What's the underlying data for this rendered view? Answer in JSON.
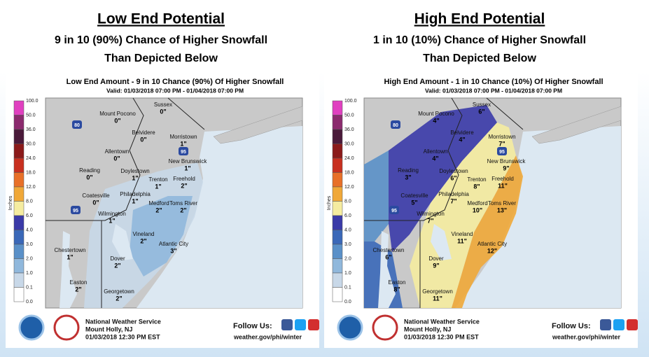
{
  "legend": {
    "unit": "Inches",
    "labels": [
      "100.0",
      "50.0",
      "36.0",
      "30.0",
      "24.0",
      "18.0",
      "12.0",
      "8.0",
      "6.0",
      "4.0",
      "3.0",
      "2.0",
      "1.0",
      "0.1",
      "0.0"
    ],
    "colors": [
      "#e040c0",
      "#8b2a6e",
      "#4a1a3a",
      "#8b1a1a",
      "#c83020",
      "#e87028",
      "#f0a838",
      "#f5eca0",
      "#3a3aa8",
      "#3a68b8",
      "#5a90c8",
      "#90b8dc",
      "#c8d8e8",
      "#ffffff"
    ]
  },
  "footer": {
    "office": "National Weather Service",
    "location": "Mount Holly, NJ",
    "issued": "01/03/2018 12:30 PM EST",
    "follow": "Follow Us:",
    "url": "weather.gov/phi/winter"
  },
  "panels": [
    {
      "heading": "Low End Potential",
      "subheading": [
        "9 in 10 (90%)  Chance of Higher Snowfall",
        "Than Depicted Below"
      ],
      "map_title": "Low End Amount - 9 in 10 Chance (90%) Of Higher Snowfall",
      "valid": "Valid: 01/03/2018 07:00 PM - 01/04/2018 07:00 PM",
      "highways": [
        "80",
        "95",
        "95"
      ],
      "cities": [
        {
          "name": "Sussex",
          "amount": "0\""
        },
        {
          "name": "Mount Pocono",
          "amount": "0\""
        },
        {
          "name": "Morristown",
          "amount": "1\""
        },
        {
          "name": "Belvidere",
          "amount": "0\""
        },
        {
          "name": "Allentown",
          "amount": "0\""
        },
        {
          "name": "New Brunswick",
          "amount": "1\""
        },
        {
          "name": "Reading",
          "amount": "0\""
        },
        {
          "name": "Doylestown",
          "amount": "1\""
        },
        {
          "name": "Trenton",
          "amount": "1\""
        },
        {
          "name": "Freehold",
          "amount": "2\""
        },
        {
          "name": "Philadelphia",
          "amount": "1\""
        },
        {
          "name": "Coatesville",
          "amount": "0\""
        },
        {
          "name": "Medford",
          "amount": "2\""
        },
        {
          "name": "Toms River",
          "amount": "2\""
        },
        {
          "name": "Wilmington",
          "amount": "1\""
        },
        {
          "name": "Vineland",
          "amount": "2\""
        },
        {
          "name": "Chestertown",
          "amount": "1\""
        },
        {
          "name": "Atlantic City",
          "amount": "3\""
        },
        {
          "name": "Dover",
          "amount": "2\""
        },
        {
          "name": "Easton",
          "amount": "2\""
        },
        {
          "name": "Georgetown",
          "amount": "2\""
        }
      ]
    },
    {
      "heading": "High End Potential",
      "subheading": [
        "1 in 10 (10%)  Chance of Higher Snowfall",
        "Than Depicted Below"
      ],
      "map_title": "High End Amount - 1 in 10 Chance (10%) Of Higher Snowfall",
      "valid": "Valid: 01/03/2018 07:00 PM - 01/04/2018 07:00 PM",
      "highways": [
        "80",
        "95",
        "95"
      ],
      "cities": [
        {
          "name": "Sussex",
          "amount": "6\""
        },
        {
          "name": "Mount Pocono",
          "amount": "4\""
        },
        {
          "name": "Morristown",
          "amount": "7\""
        },
        {
          "name": "Belvidere",
          "amount": "4\""
        },
        {
          "name": "Allentown",
          "amount": "4\""
        },
        {
          "name": "New Brunswick",
          "amount": "9\""
        },
        {
          "name": "Reading",
          "amount": "3\""
        },
        {
          "name": "Doylestown",
          "amount": "6\""
        },
        {
          "name": "Trenton",
          "amount": "8\""
        },
        {
          "name": "Freehold",
          "amount": "11\""
        },
        {
          "name": "Philadelphia",
          "amount": "7\""
        },
        {
          "name": "Coatesville",
          "amount": "5\""
        },
        {
          "name": "Medford",
          "amount": "10\""
        },
        {
          "name": "Toms River",
          "amount": "13\""
        },
        {
          "name": "Wilmington",
          "amount": "7\""
        },
        {
          "name": "Vineland",
          "amount": "11\""
        },
        {
          "name": "Chestertown",
          "amount": "6\""
        },
        {
          "name": "Atlantic City",
          "amount": "12\""
        },
        {
          "name": "Dover",
          "amount": "9\""
        },
        {
          "name": "Easton",
          "amount": "8\""
        },
        {
          "name": "Georgetown",
          "amount": "11\""
        }
      ]
    }
  ]
}
